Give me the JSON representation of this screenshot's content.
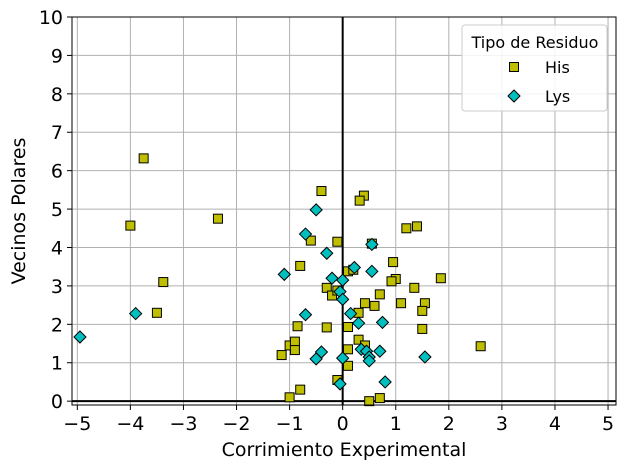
{
  "chart_data": {
    "type": "scatter",
    "title": "",
    "xlabel": "Corrimiento Experimental",
    "ylabel": "Vecinos Polares",
    "xlim": [
      -5.1,
      5.15
    ],
    "ylim": [
      -0.1,
      10
    ],
    "xticks": [
      -5,
      -4,
      -3,
      -2,
      -1,
      0,
      1,
      2,
      3,
      4,
      5
    ],
    "xtick_labels": [
      "−5",
      "−4",
      "−3",
      "−2",
      "−1",
      "0",
      "1",
      "2",
      "3",
      "4",
      "5"
    ],
    "yticks": [
      0,
      1,
      2,
      3,
      4,
      5,
      6,
      7,
      8,
      9,
      10
    ],
    "ytick_labels": [
      "0",
      "1",
      "2",
      "3",
      "4",
      "5",
      "6",
      "7",
      "8",
      "9",
      "10"
    ],
    "grid": true,
    "reference_lines": {
      "x": 0,
      "y": 0
    },
    "legend": {
      "title": "Tipo de Residuo",
      "position": "upper right"
    },
    "series": [
      {
        "name": "His",
        "marker": "square",
        "color": "#bfbf00",
        "edge_color": "#000000",
        "points": [
          [
            -3.75,
            6.32
          ],
          [
            -4.0,
            4.57
          ],
          [
            -3.38,
            3.1
          ],
          [
            -3.5,
            2.3
          ],
          [
            -2.35,
            4.75
          ],
          [
            -0.4,
            5.47
          ],
          [
            0.4,
            5.35
          ],
          [
            0.32,
            5.22
          ],
          [
            -0.8,
            3.52
          ],
          [
            -0.6,
            4.18
          ],
          [
            -0.1,
            4.15
          ],
          [
            0.55,
            4.1
          ],
          [
            1.2,
            4.5
          ],
          [
            1.4,
            4.55
          ],
          [
            0.95,
            3.62
          ],
          [
            1.85,
            3.2
          ],
          [
            1.35,
            2.95
          ],
          [
            1.0,
            3.18
          ],
          [
            0.92,
            3.12
          ],
          [
            0.7,
            2.78
          ],
          [
            1.1,
            2.55
          ],
          [
            1.55,
            2.55
          ],
          [
            1.5,
            2.35
          ],
          [
            1.5,
            1.88
          ],
          [
            2.6,
            1.43
          ],
          [
            -0.3,
            2.95
          ],
          [
            -0.2,
            2.75
          ],
          [
            -0.1,
            2.88
          ],
          [
            0.1,
            1.93
          ],
          [
            0.3,
            2.3
          ],
          [
            0.42,
            2.55
          ],
          [
            0.6,
            2.48
          ],
          [
            -0.3,
            1.92
          ],
          [
            -0.85,
            1.95
          ],
          [
            -1.0,
            1.45
          ],
          [
            -0.9,
            1.55
          ],
          [
            -0.9,
            1.33
          ],
          [
            -1.15,
            1.2
          ],
          [
            -0.8,
            0.3
          ],
          [
            -1.0,
            0.1
          ],
          [
            0.1,
            1.35
          ],
          [
            0.3,
            1.6
          ],
          [
            0.42,
            1.45
          ],
          [
            0.1,
            0.92
          ],
          [
            -0.1,
            0.55
          ],
          [
            0.5,
            0.0
          ],
          [
            0.7,
            0.08
          ],
          [
            0.1,
            3.38
          ],
          [
            0.2,
            3.42
          ]
        ]
      },
      {
        "name": "Lys",
        "marker": "diamond",
        "color": "#00bfbf",
        "edge_color": "#000000",
        "points": [
          [
            -4.95,
            1.67
          ],
          [
            -3.9,
            2.28
          ],
          [
            -0.5,
            4.98
          ],
          [
            -0.7,
            4.35
          ],
          [
            0.55,
            4.08
          ],
          [
            -0.3,
            3.85
          ],
          [
            -1.1,
            3.3
          ],
          [
            -0.2,
            3.2
          ],
          [
            0.0,
            3.15
          ],
          [
            0.22,
            3.48
          ],
          [
            0.55,
            3.38
          ],
          [
            -0.05,
            2.85
          ],
          [
            0.0,
            2.65
          ],
          [
            0.15,
            2.28
          ],
          [
            0.3,
            2.03
          ],
          [
            -0.7,
            2.25
          ],
          [
            0.75,
            2.05
          ],
          [
            0.35,
            1.35
          ],
          [
            0.45,
            1.3
          ],
          [
            0.7,
            1.3
          ],
          [
            0.5,
            1.15
          ],
          [
            -0.4,
            1.28
          ],
          [
            -0.5,
            1.1
          ],
          [
            0.0,
            1.12
          ],
          [
            0.5,
            1.05
          ],
          [
            1.55,
            1.15
          ],
          [
            -0.05,
            0.45
          ],
          [
            0.8,
            0.5
          ]
        ]
      }
    ]
  }
}
